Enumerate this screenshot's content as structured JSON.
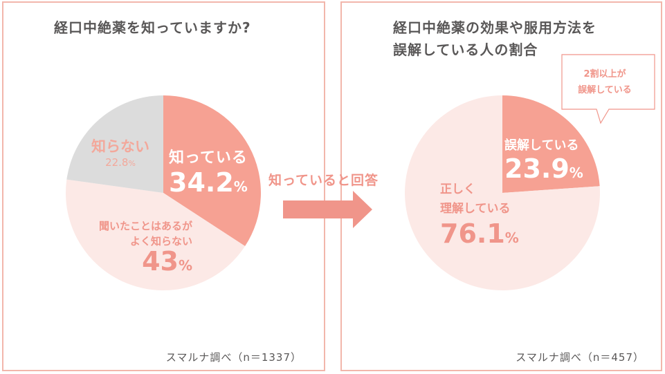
{
  "left_panel": {
    "title": "経口中絶薬を知っていますか?",
    "source": "スマルナ調べ（n＝1337）"
  },
  "right_panel": {
    "title_line1": "経口中絶薬の効果や服用方法を",
    "title_line2": "誤解している人の割合",
    "source": "スマルナ調べ（n＝457）",
    "callout_line1": "2割以上が",
    "callout_line2": "誤解している"
  },
  "arrow_label": "知っていると回答",
  "colors": {
    "border": "#f2b6ab",
    "accent": "#f0958a",
    "pale_pink": "#fce9e6",
    "gray": "#dcdcdc",
    "title_text": "#595757",
    "salmon_text": "#f0958a",
    "gray_text": "#e58b80"
  },
  "chart_data": [
    {
      "type": "pie",
      "title": "経口中絶薬を知っていますか?",
      "slices": [
        {
          "label": "知っている",
          "value": 34.2,
          "display": "34.2",
          "color": "#f6a193",
          "text_color": "#ffffff"
        },
        {
          "label_line1": "聞いたことはあるが",
          "label_line2": "よく知らない",
          "value": 43,
          "display": "43",
          "color": "#fce9e6",
          "text_color": "#f0958a"
        },
        {
          "label": "知らない",
          "value": 22.8,
          "display": "22.8",
          "color": "#dcdcdc",
          "text_color": "#f3a89b"
        }
      ],
      "unit": "%"
    },
    {
      "type": "pie",
      "title": "経口中絶薬の効果や服用方法を誤解している人の割合",
      "slices": [
        {
          "label": "誤解している",
          "value": 23.9,
          "display": "23.9",
          "color": "#f6a193",
          "text_color": "#ffffff"
        },
        {
          "label_line1": "正しく",
          "label_line2": "理解している",
          "value": 76.1,
          "display": "76.1",
          "color": "#fce9e6",
          "text_color": "#f0958a"
        }
      ],
      "unit": "%"
    }
  ]
}
